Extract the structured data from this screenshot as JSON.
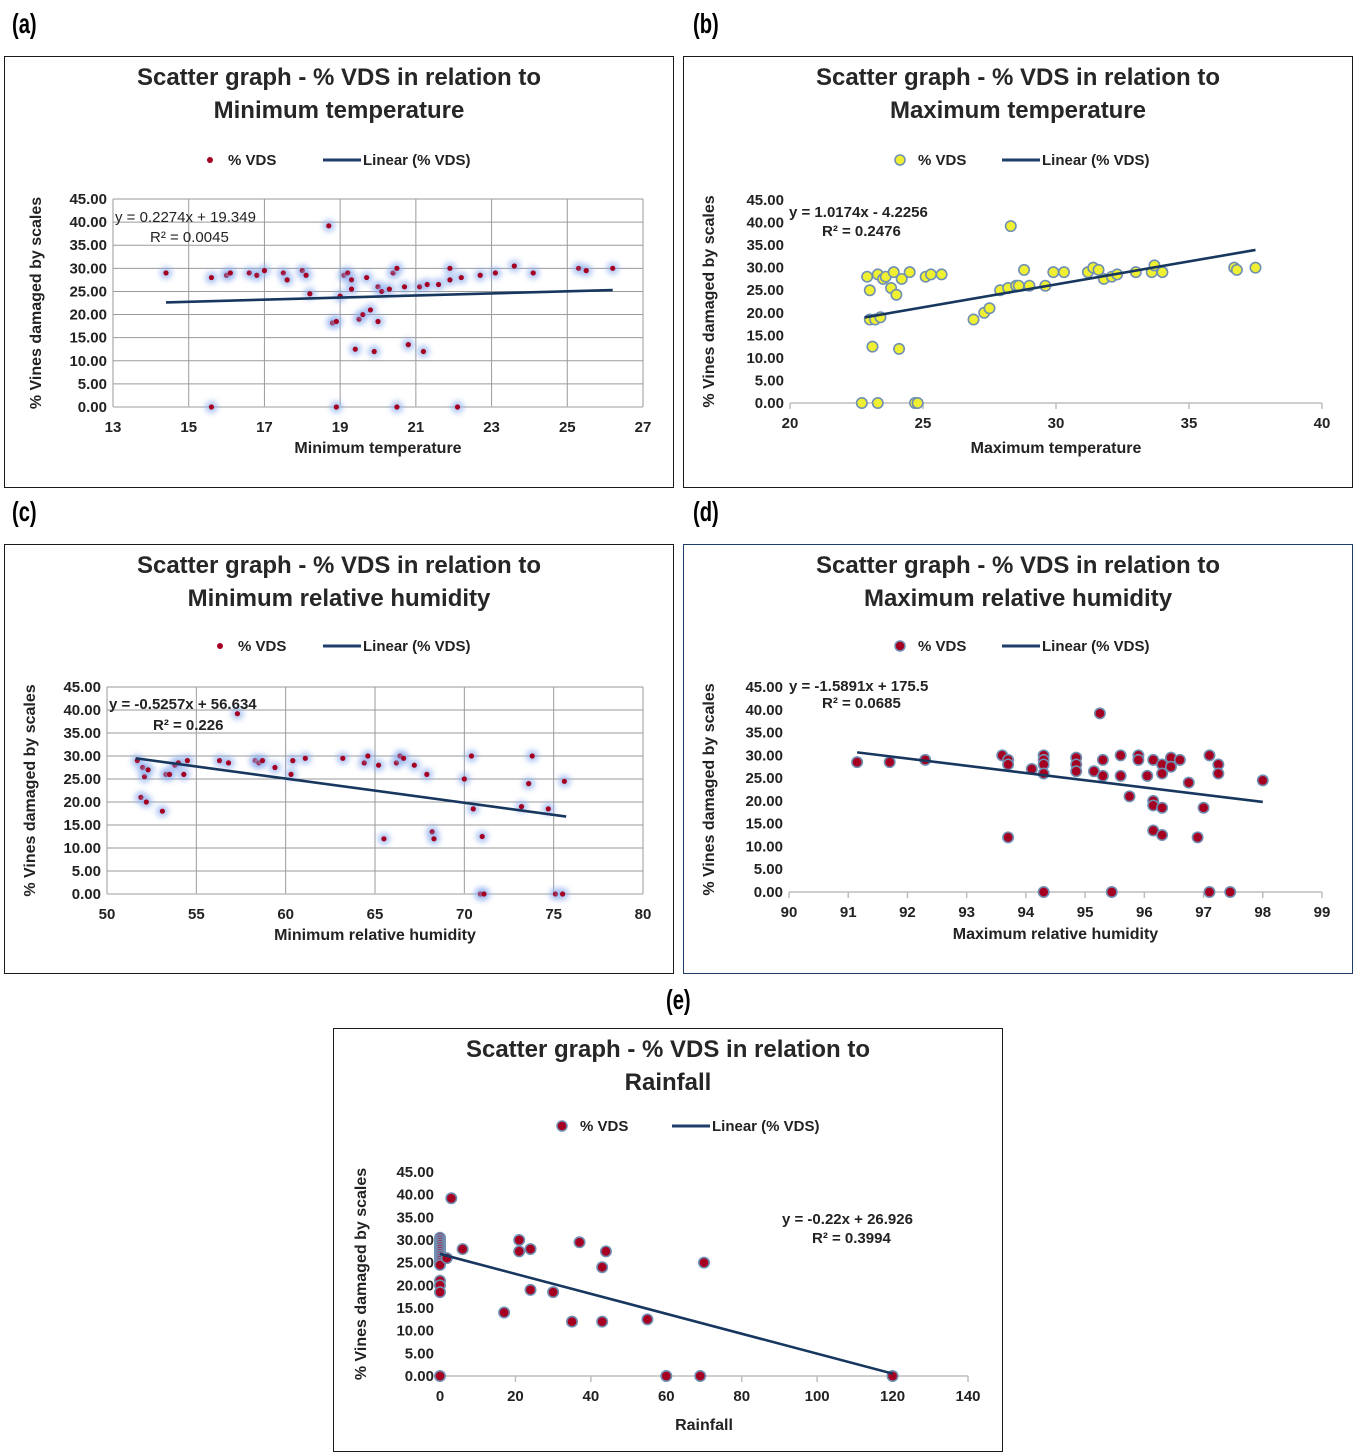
{
  "panel_labels": [
    "(a)",
    "(b)",
    "(c)",
    "(d)",
    "(e)"
  ],
  "chart_data": [
    {
      "type": "scatter",
      "title_lines": [
        "Scatter graph - % VDS in relation to",
        "Minimum temperature"
      ],
      "xlabel": "Minimum temperature",
      "ylabel": "% Vines damaged by scales",
      "xlim": [
        13,
        27
      ],
      "xticks": [
        13,
        15,
        17,
        19,
        21,
        23,
        25,
        27
      ],
      "ylim": [
        0,
        45
      ],
      "yticks": [
        0,
        5,
        10,
        15,
        20,
        25,
        30,
        35,
        40,
        45
      ],
      "grid": true,
      "legend": {
        "series": "% VDS",
        "trend": "Linear (% VDS)",
        "placement": "top"
      },
      "equation": "y = 0.2274x + 19.349",
      "r2": "R² = 0.0045",
      "trendline": {
        "slope": 0.2274,
        "intercept": 19.349,
        "x_range": [
          14.4,
          26.2
        ]
      },
      "marker": {
        "fill": "#a50021",
        "stroke": "#a50021",
        "glow": true
      },
      "points": [
        [
          14.4,
          29
        ],
        [
          15.6,
          28
        ],
        [
          15.6,
          0
        ],
        [
          16,
          28.5
        ],
        [
          16.1,
          29
        ],
        [
          16.6,
          29
        ],
        [
          16.8,
          28.5
        ],
        [
          17,
          29.5
        ],
        [
          17.5,
          29
        ],
        [
          17.6,
          27.5
        ],
        [
          18,
          29.5
        ],
        [
          18.1,
          28.5
        ],
        [
          18.2,
          24.5
        ],
        [
          18.7,
          39.2
        ],
        [
          18.8,
          18.2
        ],
        [
          18.9,
          18.5
        ],
        [
          18.9,
          0
        ],
        [
          19,
          24
        ],
        [
          19.1,
          28.5
        ],
        [
          19.2,
          29
        ],
        [
          19.3,
          27.5
        ],
        [
          19.3,
          25.5
        ],
        [
          19.4,
          12.5
        ],
        [
          19.5,
          19
        ],
        [
          19.6,
          20
        ],
        [
          19.7,
          28
        ],
        [
          19.8,
          21
        ],
        [
          19.9,
          12
        ],
        [
          20,
          18.5
        ],
        [
          20,
          26
        ],
        [
          20.1,
          25
        ],
        [
          20.3,
          25.5
        ],
        [
          20.4,
          29
        ],
        [
          20.5,
          30
        ],
        [
          20.5,
          0
        ],
        [
          20.7,
          26
        ],
        [
          20.8,
          13.5
        ],
        [
          21.1,
          26
        ],
        [
          21.2,
          12
        ],
        [
          21.3,
          26.5
        ],
        [
          21.6,
          26.5
        ],
        [
          21.9,
          30
        ],
        [
          21.9,
          27.5
        ],
        [
          22.1,
          0
        ],
        [
          22.2,
          28
        ],
        [
          22.7,
          28.5
        ],
        [
          23.1,
          29
        ],
        [
          23.6,
          30.5
        ],
        [
          24.1,
          29
        ],
        [
          25.3,
          30
        ],
        [
          25.5,
          29.5
        ],
        [
          26.2,
          30
        ]
      ]
    },
    {
      "type": "scatter",
      "title_lines": [
        "Scatter graph - % VDS in relation to",
        "Maximum temperature"
      ],
      "xlabel": "Maximum temperature",
      "ylabel": "% Vines damaged by scales",
      "xlim": [
        20,
        40
      ],
      "xticks": [
        20,
        25,
        30,
        35,
        40
      ],
      "ylim": [
        0,
        45
      ],
      "yticks": [
        0,
        5,
        10,
        15,
        20,
        25,
        30,
        35,
        40,
        45
      ],
      "grid": false,
      "legend": {
        "series": "% VDS",
        "trend": "Linear (% VDS)",
        "placement": "top"
      },
      "equation": "y = 1.0174x - 4.2256",
      "r2": "R² = 0.2476",
      "trendline": {
        "slope": 1.0174,
        "intercept": -4.2256,
        "x_range": [
          22.8,
          37.5
        ]
      },
      "marker": {
        "fill": "#f0f032",
        "stroke": "#6f8fb3",
        "glow": false
      },
      "points": [
        [
          22.7,
          0
        ],
        [
          22.9,
          28
        ],
        [
          23,
          18.5
        ],
        [
          23,
          25
        ],
        [
          23.1,
          12.5
        ],
        [
          23.2,
          18.5
        ],
        [
          23.3,
          0
        ],
        [
          23.3,
          28.5
        ],
        [
          23.4,
          19
        ],
        [
          23.5,
          27.5
        ],
        [
          23.6,
          28
        ],
        [
          23.8,
          25.5
        ],
        [
          23.9,
          29
        ],
        [
          24,
          24
        ],
        [
          24.1,
          12
        ],
        [
          24.2,
          27.5
        ],
        [
          24.5,
          29
        ],
        [
          24.7,
          0
        ],
        [
          24.8,
          0
        ],
        [
          25.1,
          28
        ],
        [
          25.3,
          28.5
        ],
        [
          25.7,
          28.5
        ],
        [
          26.9,
          18.5
        ],
        [
          27.3,
          20
        ],
        [
          27.5,
          21
        ],
        [
          27.9,
          25
        ],
        [
          28.2,
          25.5
        ],
        [
          28.3,
          39.2
        ],
        [
          28.5,
          26
        ],
        [
          28.6,
          26
        ],
        [
          28.8,
          29.5
        ],
        [
          29,
          26
        ],
        [
          29.6,
          26
        ],
        [
          29.9,
          29
        ],
        [
          30.3,
          29
        ],
        [
          31.2,
          29
        ],
        [
          31.4,
          30
        ],
        [
          31.6,
          29.5
        ],
        [
          31.8,
          27.5
        ],
        [
          32.1,
          28
        ],
        [
          32.3,
          28.5
        ],
        [
          33,
          29
        ],
        [
          33.6,
          29
        ],
        [
          33.7,
          30.5
        ],
        [
          34,
          29
        ],
        [
          36.7,
          30
        ],
        [
          36.8,
          29.5
        ],
        [
          37.5,
          30
        ]
      ]
    },
    {
      "type": "scatter",
      "title_lines": [
        "Scatter graph - % VDS in relation to",
        "Minimum relative humidity"
      ],
      "xlabel": "Minimum relative humidity",
      "ylabel": "% Vines damaged by scales",
      "xlim": [
        50,
        80
      ],
      "xticks": [
        50,
        55,
        60,
        65,
        70,
        75,
        80
      ],
      "ylim": [
        0,
        45
      ],
      "yticks": [
        0,
        5,
        10,
        15,
        20,
        25,
        30,
        35,
        40,
        45
      ],
      "grid": true,
      "legend": {
        "series": "% VDS",
        "trend": "Linear (% VDS)",
        "placement": "top"
      },
      "equation": "y = -0.5257x + 56.634",
      "r2": "R² = 0.226",
      "trendline": {
        "slope": -0.5257,
        "intercept": 56.634,
        "x_range": [
          51.6,
          75.7
        ]
      },
      "marker": {
        "fill": "#a50021",
        "stroke": "#a50021",
        "glow": true
      },
      "points": [
        [
          51.7,
          29
        ],
        [
          51.9,
          21
        ],
        [
          52,
          27.5
        ],
        [
          52.1,
          25.5
        ],
        [
          52.2,
          20
        ],
        [
          52.3,
          27
        ],
        [
          53.1,
          18
        ],
        [
          53.3,
          26
        ],
        [
          53.5,
          26
        ],
        [
          53.8,
          28
        ],
        [
          54,
          28.5
        ],
        [
          54.3,
          26
        ],
        [
          54.5,
          29
        ],
        [
          56.3,
          29
        ],
        [
          56.8,
          28.5
        ],
        [
          57.3,
          39.2
        ],
        [
          58.3,
          29
        ],
        [
          58.5,
          28.5
        ],
        [
          58.7,
          29
        ],
        [
          59.4,
          27.5
        ],
        [
          60.3,
          26
        ],
        [
          60.4,
          29
        ],
        [
          61.1,
          29.5
        ],
        [
          63.2,
          29.5
        ],
        [
          64.4,
          28.5
        ],
        [
          64.6,
          30
        ],
        [
          65.2,
          28
        ],
        [
          65.5,
          12
        ],
        [
          66.2,
          28.5
        ],
        [
          66.4,
          30
        ],
        [
          66.6,
          29.5
        ],
        [
          67.2,
          28
        ],
        [
          67.9,
          26
        ],
        [
          68.2,
          13.5
        ],
        [
          68.3,
          12
        ],
        [
          70,
          25
        ],
        [
          70.4,
          30
        ],
        [
          70.5,
          18.5
        ],
        [
          70.9,
          0
        ],
        [
          71,
          12.5
        ],
        [
          71.1,
          0
        ],
        [
          73.2,
          19
        ],
        [
          73.6,
          24
        ],
        [
          73.8,
          30
        ],
        [
          74.7,
          18.5
        ],
        [
          75.1,
          0
        ],
        [
          75.6,
          24.5
        ],
        [
          75.5,
          0
        ]
      ]
    },
    {
      "type": "scatter",
      "title_lines": [
        "Scatter graph - % VDS in relation to",
        "Maximum relative humidity"
      ],
      "xlabel": "Maximum relative humidity",
      "ylabel": "% Vines damaged by scales",
      "xlim": [
        90,
        99
      ],
      "xticks": [
        90,
        91,
        92,
        93,
        94,
        95,
        96,
        97,
        98,
        99
      ],
      "ylim": [
        0,
        45
      ],
      "yticks": [
        0,
        5,
        10,
        15,
        20,
        25,
        30,
        35,
        40,
        45
      ],
      "grid": false,
      "legend": {
        "series": "% VDS",
        "trend": "Linear (% VDS)",
        "placement": "top"
      },
      "equation": "y = -1.5891x + 175.5",
      "r2": "R² = 0.0685",
      "trendline": {
        "slope": -1.5891,
        "intercept": 175.5,
        "x_range": [
          91.15,
          98
        ]
      },
      "marker": {
        "fill": "#a50021",
        "stroke": "#6f8fb3",
        "glow": false
      },
      "points": [
        [
          91.15,
          28.5
        ],
        [
          91.7,
          28.5
        ],
        [
          92.3,
          29
        ],
        [
          93.6,
          30
        ],
        [
          93.7,
          29
        ],
        [
          93.7,
          28
        ],
        [
          93.7,
          12
        ],
        [
          94.1,
          27
        ],
        [
          94.3,
          30
        ],
        [
          94.3,
          29
        ],
        [
          94.3,
          28
        ],
        [
          94.3,
          26
        ],
        [
          94.3,
          0
        ],
        [
          94.85,
          29.5
        ],
        [
          94.85,
          28
        ],
        [
          94.85,
          26.5
        ],
        [
          95.15,
          26.5
        ],
        [
          95.25,
          39.2
        ],
        [
          95.3,
          29
        ],
        [
          95.3,
          25.5
        ],
        [
          95.45,
          0
        ],
        [
          95.6,
          30
        ],
        [
          95.6,
          25.5
        ],
        [
          95.75,
          21
        ],
        [
          95.9,
          30
        ],
        [
          95.9,
          29
        ],
        [
          96.05,
          25.5
        ],
        [
          96.15,
          29
        ],
        [
          96.15,
          20
        ],
        [
          96.15,
          19
        ],
        [
          96.15,
          13.5
        ],
        [
          96.3,
          28
        ],
        [
          96.3,
          26
        ],
        [
          96.3,
          18.5
        ],
        [
          96.3,
          12.5
        ],
        [
          96.45,
          29.5
        ],
        [
          96.45,
          27.5
        ],
        [
          96.6,
          29
        ],
        [
          96.75,
          24
        ],
        [
          96.9,
          12
        ],
        [
          97,
          18.5
        ],
        [
          97.1,
          30
        ],
        [
          97.1,
          0
        ],
        [
          97.25,
          28
        ],
        [
          97.25,
          26
        ],
        [
          97.45,
          0
        ],
        [
          98,
          24.5
        ]
      ]
    },
    {
      "type": "scatter",
      "title_lines": [
        "Scatter graph - % VDS in relation to",
        "Rainfall"
      ],
      "xlabel": "Rainfall",
      "ylabel": "% Vines damaged by scales",
      "xlim": [
        0,
        140
      ],
      "xticks": [
        0,
        20,
        40,
        60,
        80,
        100,
        120,
        140
      ],
      "ylim": [
        0,
        45
      ],
      "yticks": [
        0,
        5,
        10,
        15,
        20,
        25,
        30,
        35,
        40,
        45
      ],
      "grid": false,
      "legend": {
        "series": "% VDS",
        "trend": "Linear (% VDS)",
        "placement": "top"
      },
      "equation": "y = -0.22x + 26.926",
      "r2": "R² = 0.3994",
      "trendline": {
        "slope": -0.22,
        "intercept": 26.926,
        "x_range": [
          0,
          120
        ]
      },
      "marker": {
        "fill": "#a50021",
        "stroke": "#6f8fb3",
        "glow": false
      },
      "points": [
        [
          0,
          30.5
        ],
        [
          0,
          30
        ],
        [
          0,
          29.5
        ],
        [
          0,
          29
        ],
        [
          0,
          28.5
        ],
        [
          0,
          28
        ],
        [
          0,
          27.5
        ],
        [
          0,
          27
        ],
        [
          0,
          26.5
        ],
        [
          0,
          26
        ],
        [
          0,
          25.5
        ],
        [
          0,
          25
        ],
        [
          0,
          24.5
        ],
        [
          0,
          21
        ],
        [
          0,
          20
        ],
        [
          0,
          18.5
        ],
        [
          0,
          0
        ],
        [
          1.8,
          26
        ],
        [
          3,
          39.2
        ],
        [
          6,
          28
        ],
        [
          17,
          14
        ],
        [
          21,
          30
        ],
        [
          21,
          27.5
        ],
        [
          24,
          28
        ],
        [
          24,
          19
        ],
        [
          30,
          18.5
        ],
        [
          35,
          12
        ],
        [
          37,
          29.5
        ],
        [
          43,
          24
        ],
        [
          43,
          12
        ],
        [
          44,
          27.5
        ],
        [
          55,
          12.5
        ],
        [
          60,
          0
        ],
        [
          69,
          0
        ],
        [
          70,
          25
        ],
        [
          120,
          0
        ]
      ]
    }
  ]
}
